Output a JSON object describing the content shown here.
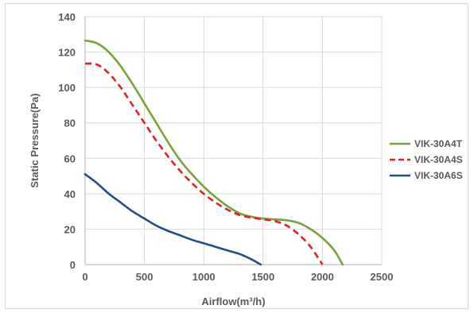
{
  "chart_data": {
    "type": "line",
    "title": "",
    "xlabel": "Airflow(m³/h)",
    "ylabel": "Static Pressure(Pa)",
    "xlim": [
      0,
      2500
    ],
    "ylim": [
      0,
      140
    ],
    "xticks": [
      "0",
      "500",
      "1000",
      "1500",
      "2000",
      "2500"
    ],
    "yticks": [
      "0",
      "20",
      "40",
      "60",
      "80",
      "100",
      "120",
      "140"
    ],
    "grid": true,
    "legend_position": "right",
    "series": [
      {
        "name": "VIK-30A4T",
        "color": "#77a33a",
        "style": "solid",
        "x": [
          0,
          100,
          200,
          300,
          400,
          500,
          600,
          700,
          800,
          900,
          1000,
          1100,
          1200,
          1300,
          1400,
          1500,
          1600,
          1700,
          1800,
          1900,
          2000,
          2100,
          2170
        ],
        "y": [
          126.5,
          125,
          120,
          112,
          102,
          91,
          80,
          69,
          59,
          51,
          44,
          38,
          33,
          29,
          27,
          26,
          25.5,
          25,
          23.5,
          20,
          15,
          8,
          0
        ]
      },
      {
        "name": "VIK-30A4S",
        "color": "#e02222",
        "style": "dashed",
        "x": [
          0,
          100,
          200,
          300,
          400,
          500,
          600,
          700,
          800,
          900,
          1000,
          1100,
          1200,
          1300,
          1400,
          1500,
          1600,
          1700,
          1800,
          1900,
          2000
        ],
        "y": [
          113.5,
          113,
          108,
          100,
          90,
          80,
          70,
          61,
          53,
          46,
          40,
          35,
          31,
          28,
          26.5,
          25.5,
          24.5,
          22,
          17,
          10,
          0
        ]
      },
      {
        "name": "VIK-30A6S",
        "color": "#1f4e8c",
        "style": "solid",
        "x": [
          0,
          100,
          200,
          300,
          400,
          500,
          600,
          700,
          800,
          900,
          1000,
          1100,
          1200,
          1300,
          1400,
          1480
        ],
        "y": [
          51,
          46,
          40,
          35,
          30,
          26,
          22,
          19,
          16.5,
          14,
          12,
          10,
          8,
          6,
          3,
          0
        ]
      }
    ]
  }
}
